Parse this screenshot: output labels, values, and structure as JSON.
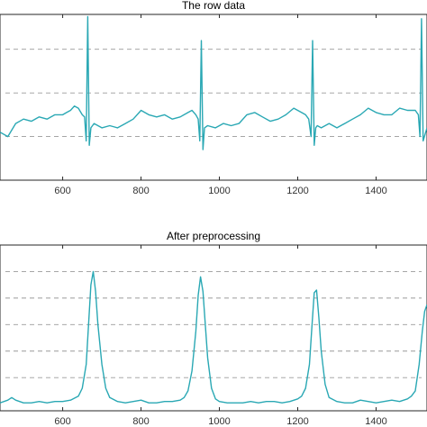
{
  "chart_data": [
    {
      "type": "line",
      "title": "The row data",
      "xlabel": "",
      "ylabel": "",
      "xlim": [
        440,
        1530
      ],
      "ylim": [
        -1.2,
        2.6
      ],
      "xticks": [
        600,
        800,
        1000,
        1200,
        1400
      ],
      "xtick_labels": [
        "600",
        "800",
        "1000",
        "1200",
        "1400"
      ],
      "y_gridlines": [
        -0.2,
        0.8,
        1.8
      ],
      "grid": "y-dashed",
      "color": "#2aa8b4",
      "series": [
        {
          "x": [
            440,
            460,
            480,
            500,
            520,
            540,
            560,
            580,
            600,
            610,
            620,
            630,
            640,
            650,
            656,
            660,
            664,
            668,
            672,
            680,
            700,
            720,
            740,
            760,
            780,
            800,
            820,
            840,
            860,
            880,
            900,
            920,
            930,
            940,
            946,
            950,
            954,
            958,
            962,
            970,
            990,
            1010,
            1030,
            1050,
            1070,
            1090,
            1110,
            1130,
            1150,
            1170,
            1190,
            1210,
            1220,
            1228,
            1234,
            1238,
            1242,
            1246,
            1250,
            1260,
            1280,
            1300,
            1320,
            1340,
            1360,
            1380,
            1400,
            1420,
            1440,
            1460,
            1480,
            1500,
            1508,
            1512,
            1516,
            1520,
            1530
          ],
          "y": [
            -0.1,
            -0.2,
            0.1,
            0.2,
            0.15,
            0.25,
            0.2,
            0.3,
            0.3,
            0.35,
            0.4,
            0.5,
            0.45,
            0.3,
            0.25,
            -0.3,
            2.55,
            -0.4,
            0.0,
            0.1,
            0.0,
            0.05,
            0.0,
            0.1,
            0.2,
            0.4,
            0.3,
            0.25,
            0.3,
            0.2,
            0.25,
            0.35,
            0.4,
            0.3,
            0.2,
            -0.3,
            2.0,
            -0.5,
            0.0,
            0.05,
            0.0,
            0.1,
            0.05,
            0.1,
            0.3,
            0.35,
            0.25,
            0.15,
            0.2,
            0.3,
            0.45,
            0.35,
            0.3,
            0.2,
            -0.2,
            2.0,
            -0.4,
            0.0,
            0.05,
            0.0,
            0.1,
            0.0,
            0.1,
            0.2,
            0.3,
            0.45,
            0.35,
            0.3,
            0.3,
            0.45,
            0.4,
            0.4,
            0.3,
            -0.2,
            2.5,
            -0.3,
            0.0
          ]
        }
      ]
    },
    {
      "type": "line",
      "title": "After preprocessing",
      "xlabel": "",
      "ylabel": "",
      "xlim": [
        440,
        1530
      ],
      "ylim": [
        -0.05,
        1.2
      ],
      "xticks": [
        600,
        800,
        1000,
        1200,
        1400
      ],
      "xtick_labels": [
        "600",
        "800",
        "1000",
        "1200",
        "1400"
      ],
      "y_gridlines": [
        0.2,
        0.4,
        0.6,
        0.8,
        1.0
      ],
      "grid": "y-dashed",
      "color": "#2aa8b4",
      "series": [
        {
          "x": [
            440,
            460,
            470,
            480,
            500,
            520,
            540,
            560,
            580,
            600,
            620,
            640,
            650,
            660,
            666,
            672,
            678,
            684,
            690,
            700,
            710,
            720,
            740,
            760,
            780,
            800,
            820,
            840,
            860,
            880,
            900,
            910,
            920,
            930,
            940,
            946,
            952,
            958,
            964,
            970,
            980,
            990,
            1000,
            1020,
            1040,
            1060,
            1080,
            1100,
            1120,
            1140,
            1160,
            1180,
            1200,
            1210,
            1220,
            1230,
            1236,
            1242,
            1248,
            1254,
            1260,
            1270,
            1280,
            1300,
            1320,
            1340,
            1360,
            1380,
            1400,
            1420,
            1440,
            1460,
            1480,
            1490,
            1500,
            1510,
            1518,
            1524,
            1530
          ],
          "y": [
            0.01,
            0.03,
            0.05,
            0.03,
            0.01,
            0.01,
            0.02,
            0.01,
            0.02,
            0.02,
            0.03,
            0.06,
            0.12,
            0.3,
            0.6,
            0.9,
            1.0,
            0.85,
            0.6,
            0.3,
            0.12,
            0.05,
            0.02,
            0.01,
            0.02,
            0.03,
            0.01,
            0.01,
            0.02,
            0.02,
            0.03,
            0.05,
            0.1,
            0.25,
            0.55,
            0.82,
            0.96,
            0.85,
            0.6,
            0.35,
            0.12,
            0.04,
            0.02,
            0.01,
            0.01,
            0.01,
            0.02,
            0.01,
            0.02,
            0.02,
            0.01,
            0.02,
            0.04,
            0.06,
            0.12,
            0.3,
            0.58,
            0.84,
            0.86,
            0.65,
            0.4,
            0.15,
            0.05,
            0.02,
            0.01,
            0.01,
            0.03,
            0.02,
            0.01,
            0.02,
            0.03,
            0.02,
            0.04,
            0.06,
            0.1,
            0.3,
            0.55,
            0.7,
            0.75
          ]
        }
      ]
    }
  ]
}
